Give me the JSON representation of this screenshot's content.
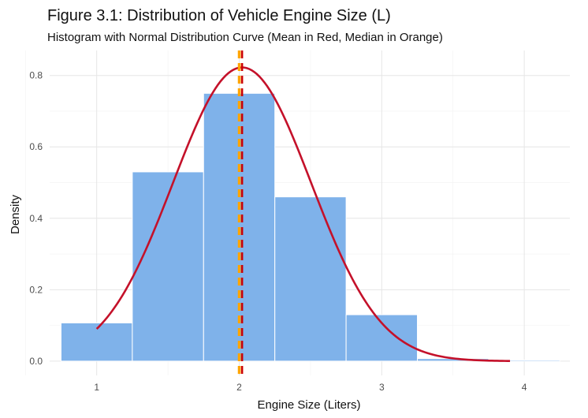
{
  "chart_data": {
    "type": "bar",
    "title": "Figure 3.1: Distribution of Vehicle Engine Size (L)",
    "subtitle": "Histogram with Normal Distribution Curve (Mean in Red, Median in Orange)",
    "xlabel": "Engine Size (Liters)",
    "ylabel": "Density",
    "xlim": [
      0.67,
      4.32
    ],
    "ylim": [
      -0.04,
      0.87
    ],
    "x_ticks": [
      1,
      2,
      3,
      4
    ],
    "y_ticks": [
      0.0,
      0.2,
      0.4,
      0.6,
      0.8
    ],
    "y_tick_labels": [
      "0.0",
      "0.2",
      "0.4",
      "0.6",
      "0.8"
    ],
    "grid": true,
    "bins": [
      {
        "x0": 0.75,
        "x1": 1.25,
        "density": 0.107
      },
      {
        "x0": 1.25,
        "x1": 1.75,
        "density": 0.53
      },
      {
        "x0": 1.75,
        "x1": 2.25,
        "density": 0.75
      },
      {
        "x0": 2.25,
        "x1": 2.75,
        "density": 0.46
      },
      {
        "x0": 2.75,
        "x1": 3.25,
        "density": 0.13
      },
      {
        "x0": 3.25,
        "x1": 3.75,
        "density": 0.007
      },
      {
        "x0": 3.75,
        "x1": 4.25,
        "density": 0.003
      }
    ],
    "normal_curve": {
      "mean": 2.02,
      "sd": 0.485,
      "x_range": [
        1.0,
        3.9
      ]
    },
    "mean_line": {
      "x": 2.02,
      "color": "#cc0000"
    },
    "median_line": {
      "x": 2.0,
      "color": "#ffa500"
    },
    "colors": {
      "bar": "#7fb2ea",
      "curve": "#c4112a"
    }
  }
}
